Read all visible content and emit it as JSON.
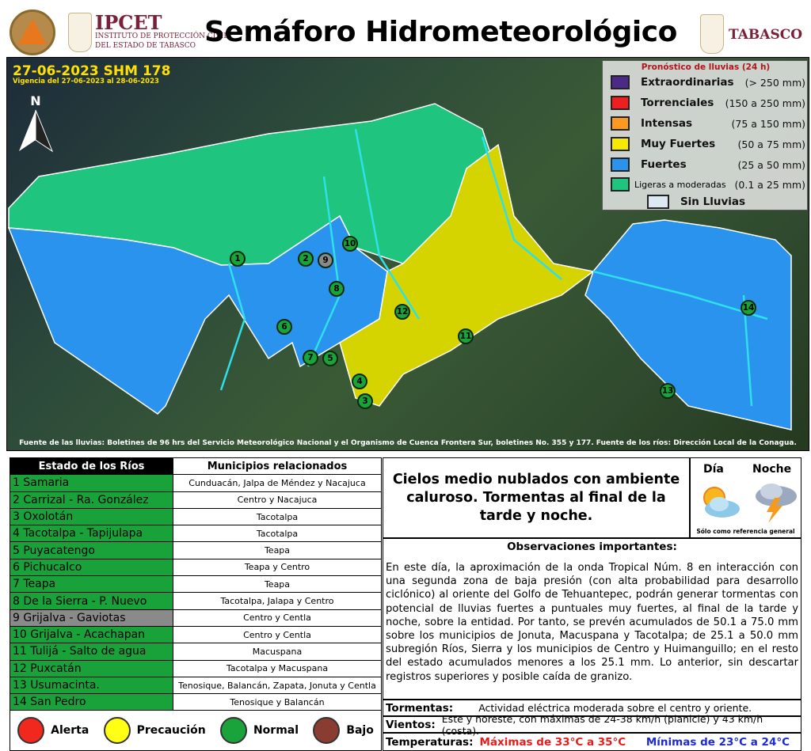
{
  "header": {
    "org_short": "IPCET",
    "org_line1": "INSTITUTO DE PROTECCIÓN CIVIL",
    "org_line2": "DEL ESTADO DE TABASCO",
    "title": "Semáforo Hidrometeorológico",
    "state": "TABASCO",
    "seal_text": "SISTEMA PROTECCIÓN CIVIL TABASCO",
    "crest_text": "TABASCO"
  },
  "map": {
    "bulletin": "27-06-2023 SHM 178",
    "validity": "Vigencia del 27-06-2023 al 28-06-2023",
    "north": "N",
    "source": "Fuente de las lluvias: Boletines de 96 hrs del Servicio Meteorológico Nacional y el Organismo de Cuenca Frontera Sur, boletines No. 355 y 177. Fuente de los ríos: Dirección Local de la Conagua.",
    "markers": [
      "1",
      "2",
      "3",
      "4",
      "5",
      "6",
      "7",
      "8",
      "9",
      "10",
      "11",
      "12",
      "13",
      "14"
    ]
  },
  "legend": {
    "title": "Pronóstico de lluvias (24 h)",
    "items": [
      {
        "name": "Extraordinarias",
        "range": "(> 250 mm)",
        "color": "#4b2a8a"
      },
      {
        "name": "Torrenciales",
        "range": "(150 a 250 mm)",
        "color": "#f01e1e"
      },
      {
        "name": "Intensas",
        "range": "(75 a 150 mm)",
        "color": "#fb9a1e"
      },
      {
        "name": "Muy Fuertes",
        "range": "(50 a 75 mm)",
        "color": "#f7ea00"
      },
      {
        "name": "Fuertes",
        "range": "(25 a 50 mm)",
        "color": "#2a93ee"
      },
      {
        "name": "Ligeras a moderadas",
        "range": "(0.1 a 25 mm)",
        "color": "#1fc47e"
      },
      {
        "name": "Sin Lluvias",
        "range": "",
        "color": "#dce8f2"
      }
    ]
  },
  "rivers": {
    "col1": "Estado de los Ríos",
    "col2": "Municipios relacionados",
    "rows": [
      {
        "river": "1 Samaria",
        "mun": "Cunduacán, Jalpa de Méndez y Nacajuca",
        "status": "Normal"
      },
      {
        "river": "2 Carrizal - Ra. González",
        "mun": "Centro y Nacajuca",
        "status": "Normal"
      },
      {
        "river": "3 Oxolotán",
        "mun": "Tacotalpa",
        "status": "Normal"
      },
      {
        "river": "4 Tacotalpa - Tapijulapa",
        "mun": "Tacotalpa",
        "status": "Normal"
      },
      {
        "river": "5 Puyacatengo",
        "mun": "Teapa",
        "status": "Normal"
      },
      {
        "river": "6 Pichucalco",
        "mun": "Teapa y Centro",
        "status": "Normal"
      },
      {
        "river": "7 Teapa",
        "mun": "Teapa",
        "status": "Normal"
      },
      {
        "river": "8 De la Sierra - P. Nuevo",
        "mun": "Tacotalpa, Jalapa y Centro",
        "status": "Normal"
      },
      {
        "river": "9 Grijalva - Gaviotas",
        "mun": "Centro y Centla",
        "status": "Sin dato"
      },
      {
        "river": "10 Grijalva - Acachapan",
        "mun": "Centro y Centla",
        "status": "Normal"
      },
      {
        "river": "11 Tulijá - Salto de agua",
        "mun": "Macuspana",
        "status": "Normal"
      },
      {
        "river": "12 Puxcatán",
        "mun": "Tacotalpa y Macuspana",
        "status": "Normal"
      },
      {
        "river": "13 Usumacinta.",
        "mun": "Tenosique, Balancán, Zapata, Jonuta y Centla",
        "status": "Normal"
      },
      {
        "river": "14 San Pedro",
        "mun": "Tenosique y Balancán",
        "status": "Normal"
      }
    ]
  },
  "status_legend": [
    {
      "label": "Alerta",
      "color": "#f0281e"
    },
    {
      "label": "Precaución",
      "color": "#ffff14"
    },
    {
      "label": "Normal",
      "color": "#1aa33a"
    },
    {
      "label": "Bajo",
      "color": "#8a3c32"
    }
  ],
  "forecast": {
    "summary": "Cielos medio nublados con ambiente caluroso. Tormentas al final de la tarde y noche.",
    "day_label": "Día",
    "night_label": "Noche",
    "day_icon": "partly-cloudy-sun-icon",
    "night_icon": "thunderstorm-icon",
    "note": "Sólo como referencia general"
  },
  "observations": {
    "title": "Observaciones importantes:",
    "body": "En este día, la aproximación de la onda Tropical Núm. 8 en interacción con una segunda zona de baja presión (con alta probabilidad para desarrollo ciclónico) al oriente del Golfo de Tehuantepec, podrán generar tormentas con potencial de lluvias fuertes a puntuales muy fuertes, al final de la tarde y noche, sobre la entidad. Por tanto, se prevén acumulados de 50.1 a 75.0 mm sobre los municipios de Jonuta, Macuspana y Tacotalpa; de 25.1 a 50.0 mm subregión Ríos, Sierra y los municipios de Centro y Huimanguillo; en el resto del estado acumulados menores a los 25.1 mm. Lo anterior, sin descartar registros superiores y posible caída de granizo."
  },
  "storms": {
    "label": "Tormentas:",
    "value": "Actividad eléctrica moderada sobre el centro y oriente."
  },
  "winds": {
    "label": "Vientos:",
    "value": "Este y noreste, con máximas de 24-38 km/h (planicie) y 43 km/h (costa)."
  },
  "temps": {
    "label": "Temperaturas:",
    "max": "Máximas de 33°C a 35°C",
    "min": "Mínimas de 23°C a 24°C",
    "max_color": "#e81c1c",
    "min_color": "#1c2ad0"
  }
}
